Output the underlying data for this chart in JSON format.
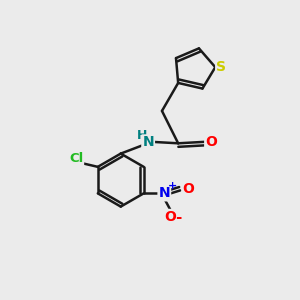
{
  "background_color": "#ebebeb",
  "bond_color": "#1a1a1a",
  "atom_colors": {
    "S": "#cccc00",
    "O": "#ff0000",
    "N_amide": "#008080",
    "N_nitro": "#0000ee",
    "Cl": "#22bb22",
    "H": "#008080",
    "C": "#1a1a1a"
  },
  "bond_width": 1.8,
  "figsize": [
    3.0,
    3.0
  ],
  "dpi": 100
}
